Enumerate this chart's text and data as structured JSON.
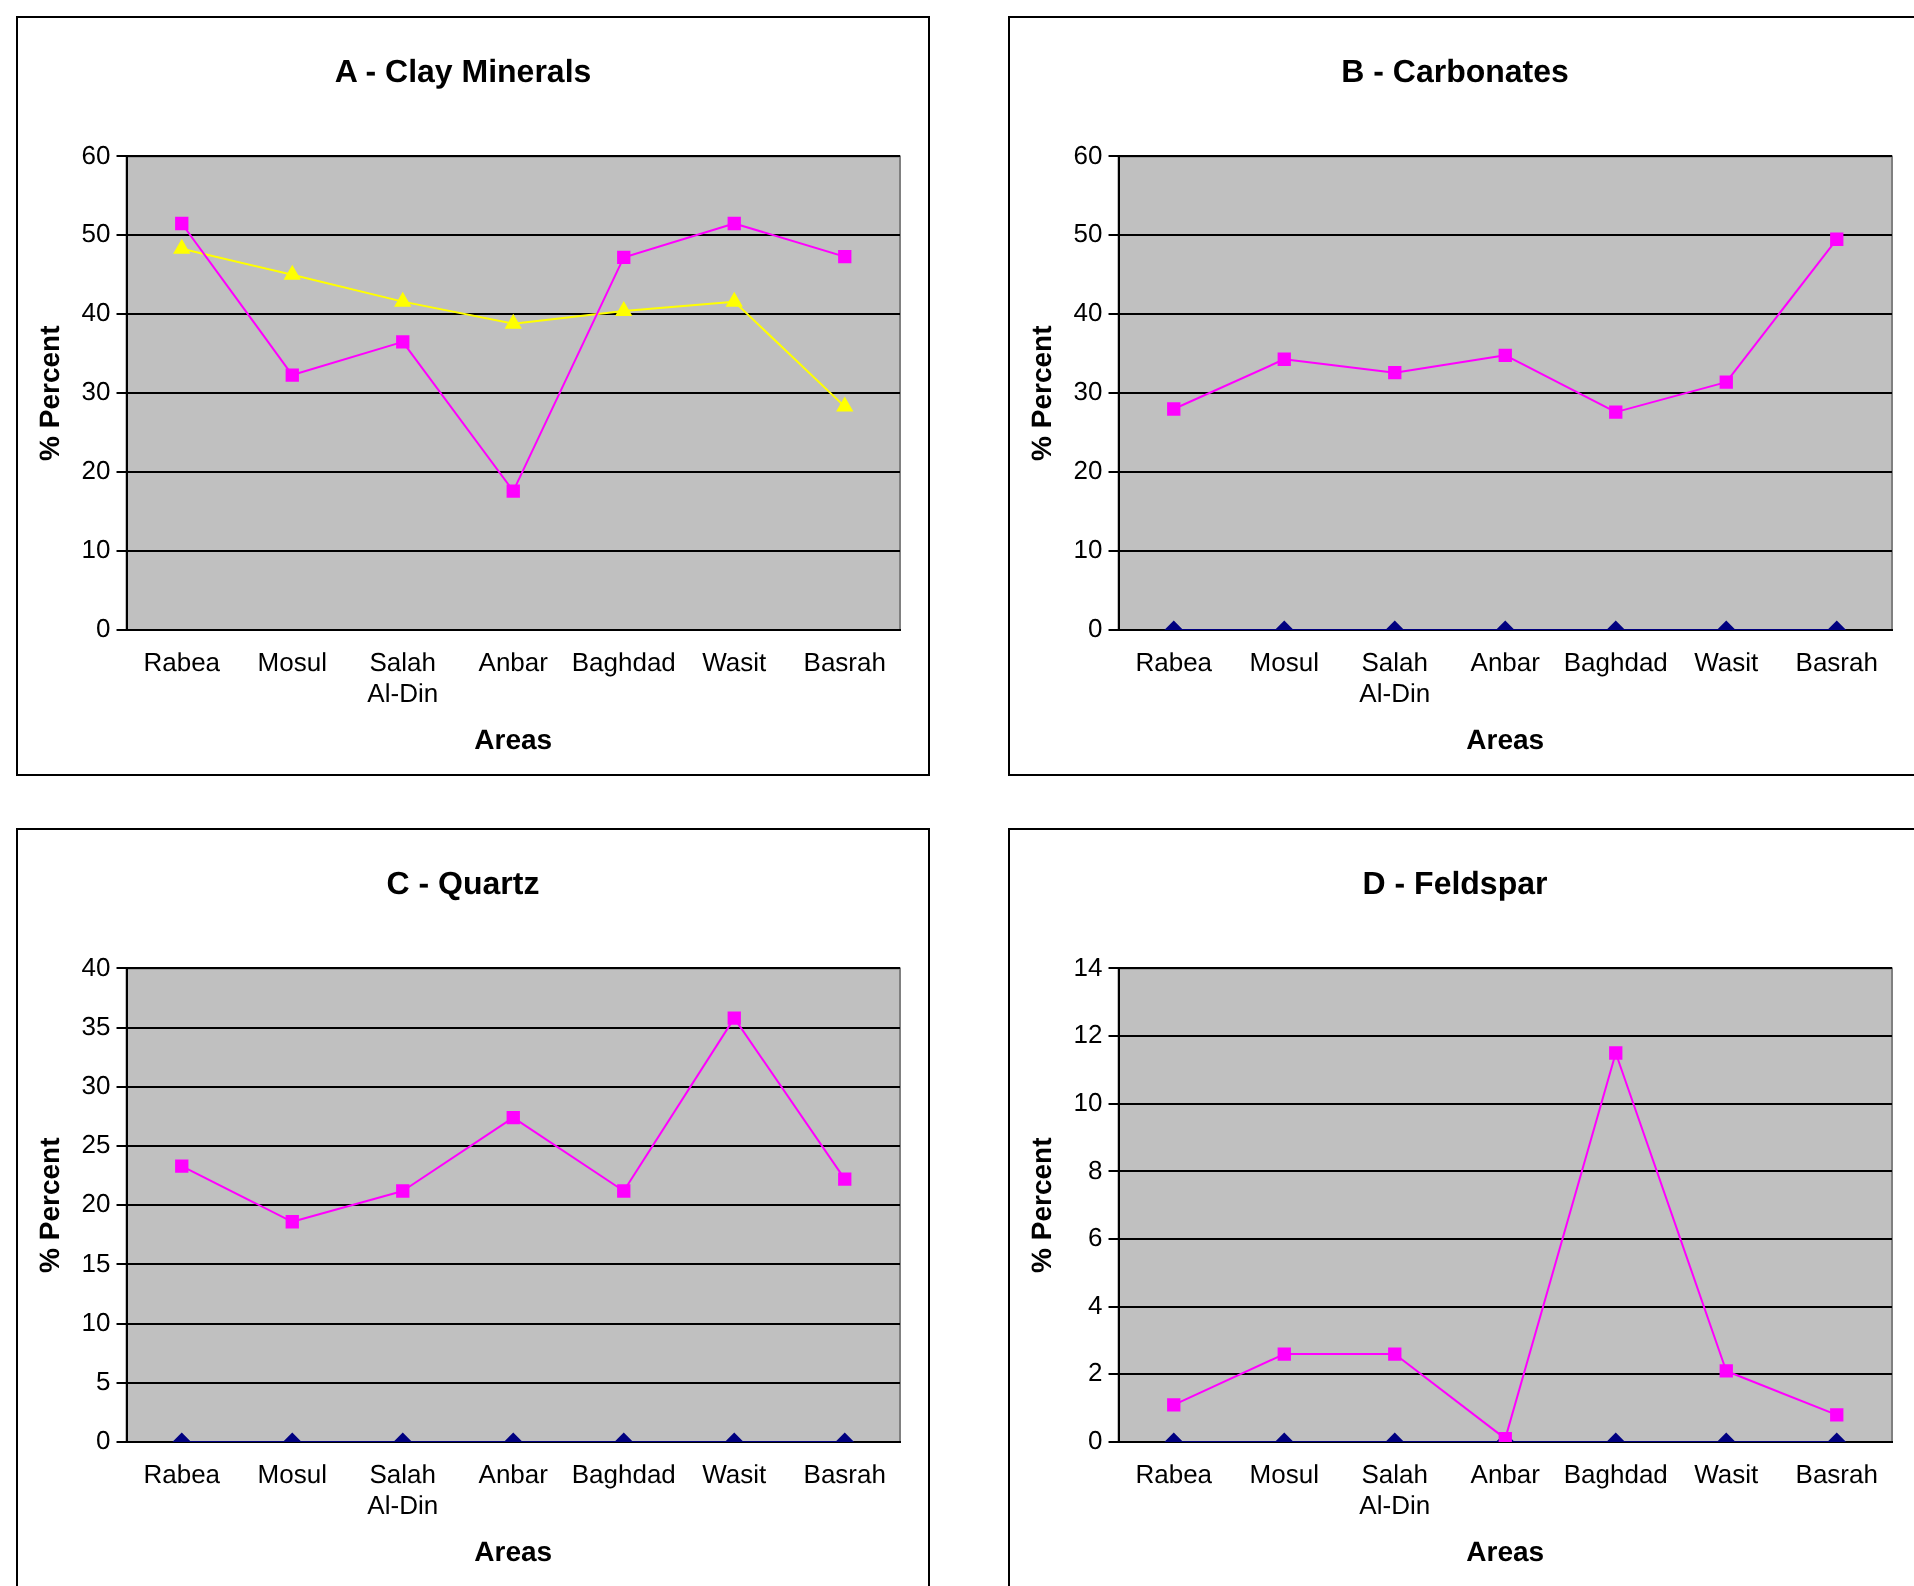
{
  "chart_data": [
    {
      "type": "line",
      "title": "A - Clay Minerals",
      "xlabel": "Areas",
      "ylabel": "% Percent",
      "categories": [
        "Rabea",
        "Mosul",
        "Salah Al-Din",
        "Anbar",
        "Baghdad",
        "Wasit",
        "Basrah"
      ],
      "ylim": [
        0,
        60
      ],
      "yticks": [
        0,
        10,
        20,
        30,
        40,
        50,
        60
      ],
      "grid": "y",
      "legend": false,
      "series": [
        {
          "color": "#ff00ff",
          "marker": "square",
          "values": [
            51.5,
            32.3,
            36.5,
            17.6,
            47.2,
            51.5,
            47.3
          ]
        },
        {
          "color": "#ffff00",
          "marker": "triangle",
          "values": [
            48.3,
            45,
            41.6,
            38.8,
            40.4,
            41.6,
            28.3
          ]
        }
      ]
    },
    {
      "type": "line",
      "title": "B - Carbonates",
      "xlabel": "Areas",
      "ylabel": "% Percent",
      "categories": [
        "Rabea",
        "Mosul",
        "Salah Al-Din",
        "Anbar",
        "Baghdad",
        "Wasit",
        "Basrah"
      ],
      "ylim": [
        0,
        60
      ],
      "yticks": [
        0,
        10,
        20,
        30,
        40,
        50,
        60
      ],
      "grid": "y",
      "legend": false,
      "series": [
        {
          "color": "#ff00ff",
          "marker": "square",
          "values": [
            28,
            34.3,
            32.6,
            34.8,
            27.6,
            31.4,
            49.5
          ]
        },
        {
          "color": "#000080",
          "marker": "diamond",
          "values": [
            0,
            0,
            0,
            0,
            0,
            0,
            0
          ]
        }
      ]
    },
    {
      "type": "line",
      "title": "C - Quartz",
      "xlabel": "Areas",
      "ylabel": "% Percent",
      "categories": [
        "Rabea",
        "Mosul",
        "Salah Al-Din",
        "Anbar",
        "Baghdad",
        "Wasit",
        "Basrah"
      ],
      "ylim": [
        0,
        40
      ],
      "yticks": [
        0,
        5,
        10,
        15,
        20,
        25,
        30,
        35,
        40
      ],
      "grid": "y",
      "legend": false,
      "series": [
        {
          "color": "#ff00ff",
          "marker": "square",
          "values": [
            23.3,
            18.6,
            21.2,
            27.4,
            21.2,
            35.8,
            22.2
          ]
        },
        {
          "color": "#000080",
          "marker": "diamond",
          "values": [
            0,
            0,
            0,
            0,
            0,
            0,
            0
          ]
        }
      ]
    },
    {
      "type": "line",
      "title": "D - Feldspar",
      "xlabel": "Areas",
      "ylabel": "% Percent",
      "categories": [
        "Rabea",
        "Mosul",
        "Salah Al-Din",
        "Anbar",
        "Baghdad",
        "Wasit",
        "Basrah"
      ],
      "ylim": [
        0,
        14
      ],
      "yticks": [
        0,
        2,
        4,
        6,
        8,
        10,
        12,
        14
      ],
      "grid": "y",
      "legend": false,
      "series": [
        {
          "color": "#ff00ff",
          "marker": "square",
          "values": [
            1.1,
            2.6,
            2.6,
            0.1,
            11.5,
            2.1,
            0.8
          ]
        },
        {
          "color": "#000080",
          "marker": "diamond",
          "values": [
            0,
            0,
            0,
            0,
            0,
            0,
            0
          ]
        }
      ]
    }
  ]
}
